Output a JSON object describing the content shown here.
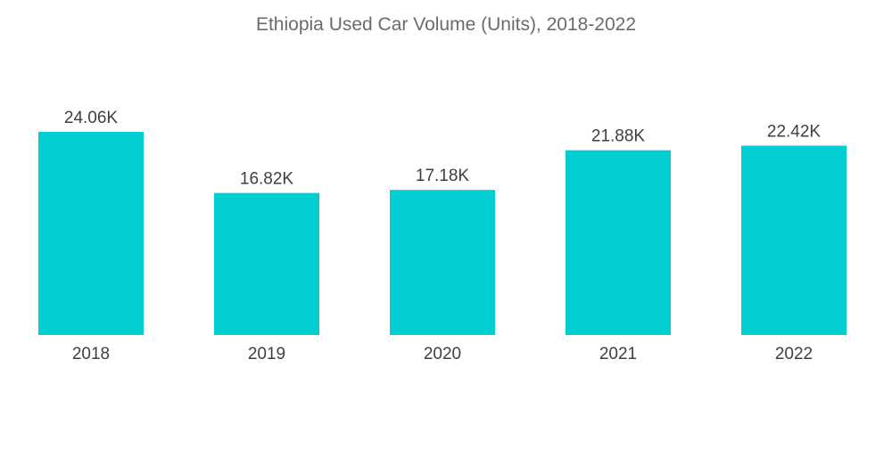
{
  "chart_data": {
    "type": "bar",
    "title": "Ethiopia Used Car Volume (Units), 2018-2022",
    "categories": [
      "2018",
      "2019",
      "2020",
      "2021",
      "2022"
    ],
    "values": [
      24.06,
      16.82,
      17.18,
      21.88,
      22.42
    ],
    "data_labels": [
      "24.06K",
      "16.82K",
      "17.18K",
      "21.88K",
      "22.42K"
    ],
    "xlabel": "",
    "ylabel": "",
    "ylim": [
      0,
      24.06
    ],
    "grid": false,
    "bar_color": "#00CED1"
  }
}
